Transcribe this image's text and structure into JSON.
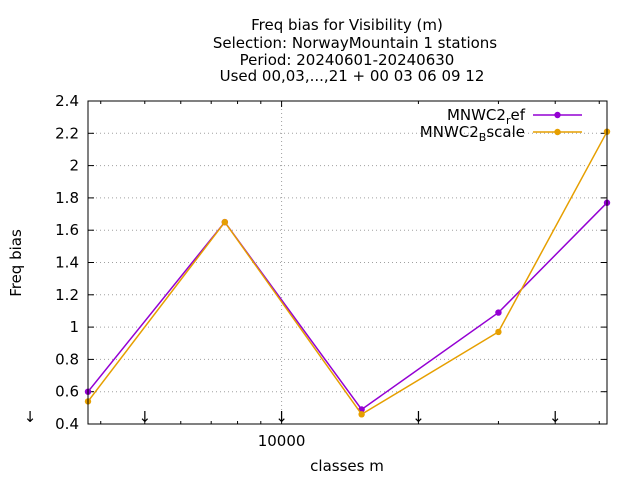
{
  "chart_data": {
    "type": "line",
    "title_lines": [
      "Freq bias  for Visibility (m)",
      "Selection: NorwayMountain      1 stations",
      "Period: 20240601-20240630",
      "Used 00,03,...,21 + 00 03 06 09 12"
    ],
    "xlabel": "classes m",
    "ylabel": "Freq bias",
    "xscale": "log",
    "xlim": [
      3750,
      52000
    ],
    "ylim": [
      0.4,
      2.4
    ],
    "yticks": [
      0.4,
      0.6,
      0.8,
      1,
      1.2,
      1.4,
      1.6,
      1.8,
      2,
      2.2,
      2.4
    ],
    "ytick_labels": [
      "0.4",
      "0.6",
      "0.8",
      "1",
      "1.2",
      "1.4",
      "1.6",
      "1.8",
      "2",
      "2.2",
      "2.4"
    ],
    "xticks_major": [
      10000
    ],
    "xtick_labels": [
      "10000"
    ],
    "grid": true,
    "legend_position": "top-right",
    "arrow_markers_x": [
      2500,
      5000,
      10000,
      20000,
      40000
    ],
    "arrow_marker_label": "↓",
    "series": [
      {
        "name_main": "MNWC2",
        "name_sub": "r",
        "name_rest": "ef",
        "color": "#9400d3",
        "x": [
          3750,
          7500,
          15000,
          30000,
          52000
        ],
        "y": [
          0.6,
          1.65,
          0.49,
          1.09,
          1.77
        ]
      },
      {
        "name_main": "MNWC2",
        "name_sub": "B",
        "name_rest": "scale",
        "color": "#e69f00",
        "x": [
          3750,
          7500,
          15000,
          30000,
          52000
        ],
        "y": [
          0.54,
          1.65,
          0.46,
          0.97,
          2.21
        ]
      }
    ]
  }
}
